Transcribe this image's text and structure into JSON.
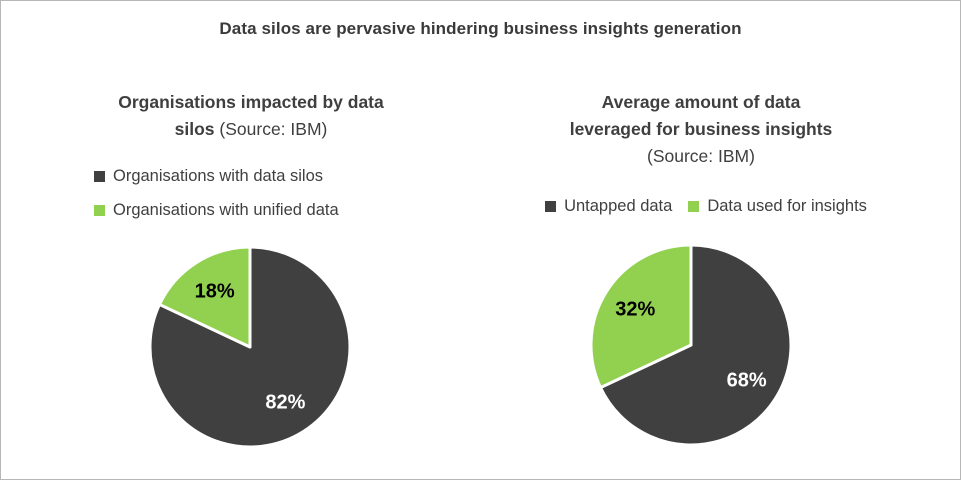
{
  "header": {
    "title": "Data silos are pervasive hindering business insights generation"
  },
  "colors": {
    "dark_slice": "#404040",
    "green_slice": "#92d050",
    "text": "#3f3f3f",
    "border": "#b7b7b7",
    "separator": "#ffffff"
  },
  "chart_data": [
    {
      "type": "pie",
      "title": "Organisations impacted by data silos (Source: IBM)",
      "title_lines": {
        "line1_bold": "Organisations impacted by data",
        "line2_bold": "silos",
        "line2_regular": "(Source: IBM)"
      },
      "legend_layout": "stacked",
      "legend_position": "left",
      "legend": [
        {
          "label": "Organisations with data silos",
          "color": "#404040"
        },
        {
          "label": "Organisations with unified data",
          "color": "#92d050"
        }
      ],
      "slices": [
        {
          "name": "Organisations with data silos",
          "value": 82,
          "display": "82%",
          "color": "#404040",
          "label_color": "#ffffff"
        },
        {
          "name": "Organisations with unified data",
          "value": 18,
          "display": "18%",
          "color": "#92d050",
          "label_color": "#000000"
        }
      ],
      "start_angle_deg": 0,
      "direction": "clockwise",
      "label_radius_ratio": 0.66
    },
    {
      "type": "pie",
      "title": "Average amount of data leveraged for business insights (Source: IBM)",
      "title_lines": {
        "line1_bold": "Average amount of data",
        "line2_bold": "leveraged for business insights",
        "line3_regular": "(Source: IBM)"
      },
      "legend_layout": "row",
      "legend_position": "center",
      "legend": [
        {
          "label": "Untapped data",
          "color": "#404040"
        },
        {
          "label": "Data used for insights",
          "color": "#92d050"
        }
      ],
      "slices": [
        {
          "name": "Untapped data",
          "value": 68,
          "display": "68%",
          "color": "#404040",
          "label_color": "#ffffff"
        },
        {
          "name": "Data used for insights",
          "value": 32,
          "display": "32%",
          "color": "#92d050",
          "label_color": "#000000"
        }
      ],
      "start_angle_deg": 0,
      "direction": "clockwise",
      "label_radius_ratio": 0.66
    }
  ]
}
